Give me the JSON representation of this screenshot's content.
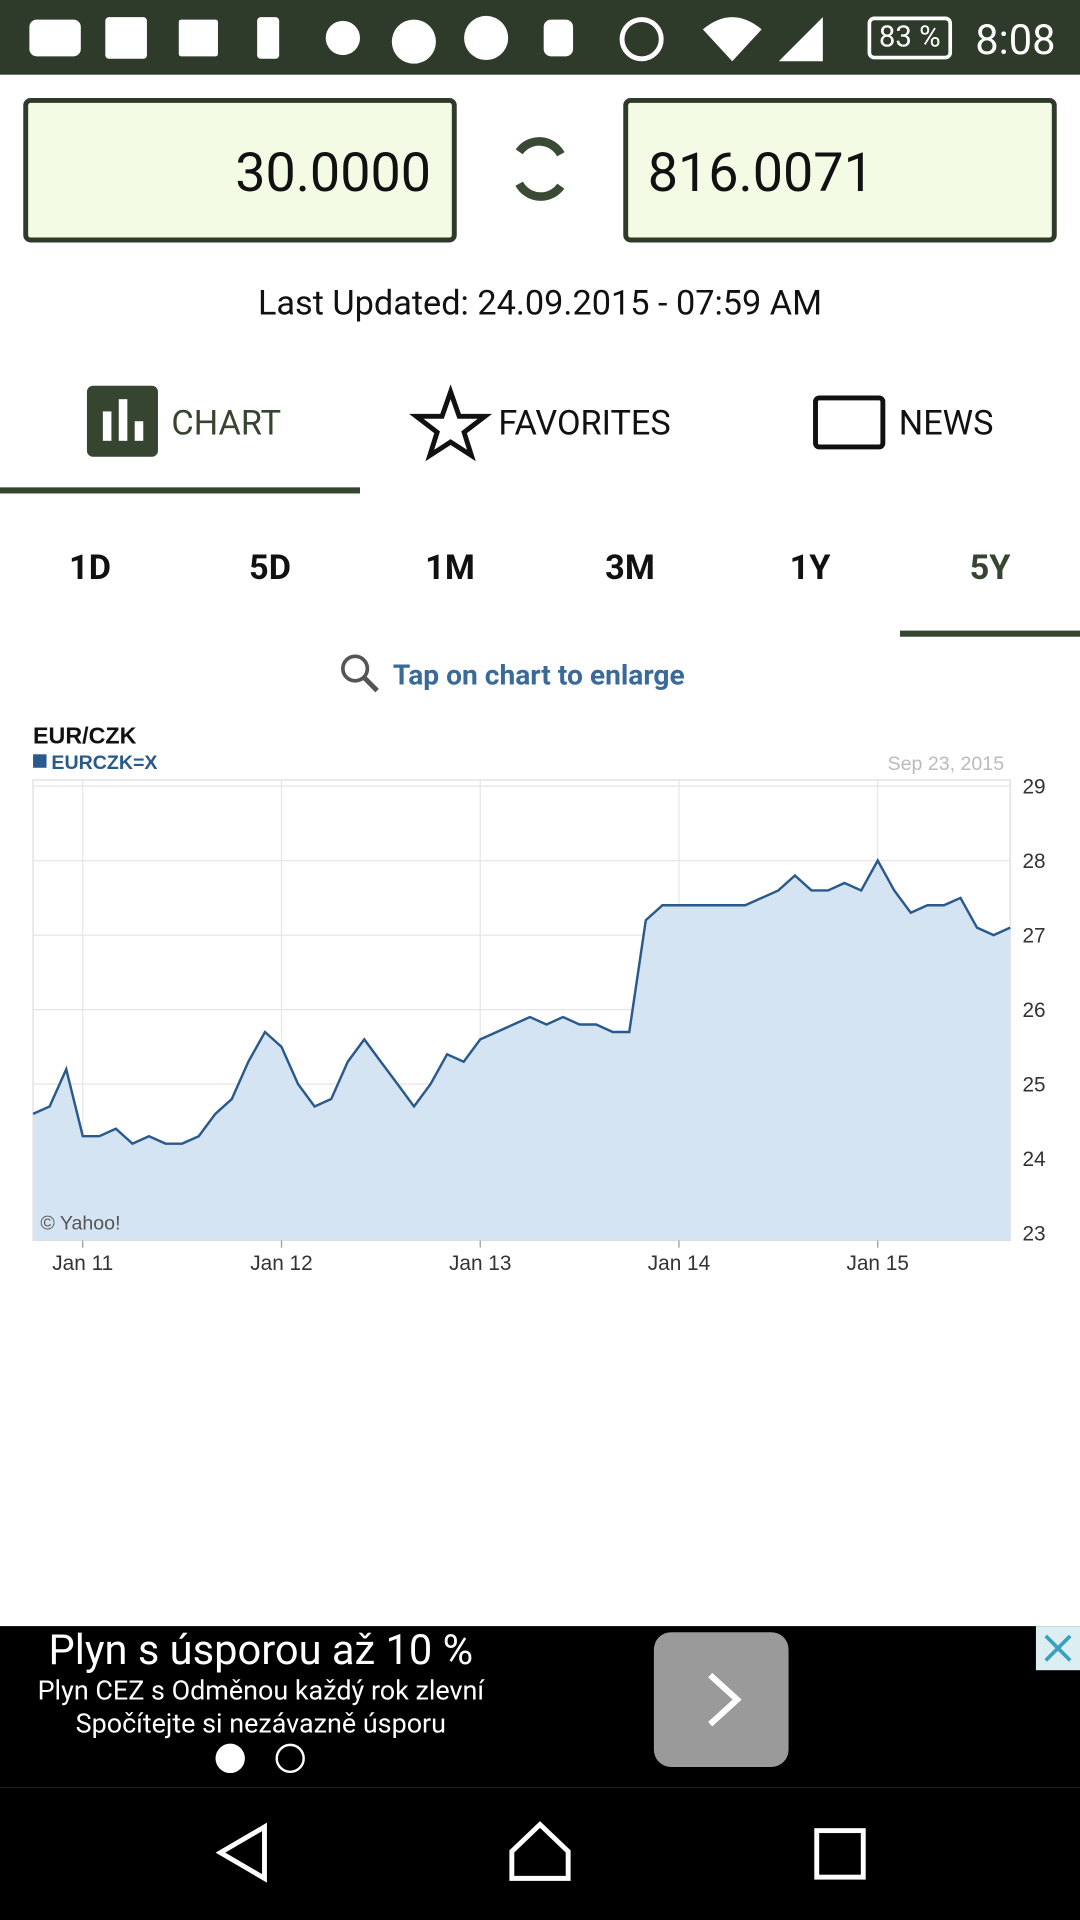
{
  "status_bar": {
    "battery": "83 %",
    "time": "8:08"
  },
  "converter": {
    "from": "30.0000",
    "to": "816.0071"
  },
  "last_updated": "Last Updated: 24.09.2015 - 07:59 AM",
  "tabs": [
    "CHART",
    "FAVORITES",
    "NEWS"
  ],
  "ranges": [
    "1D",
    "5D",
    "1M",
    "3M",
    "1Y",
    "5Y"
  ],
  "hint": "Tap on chart to enlarge",
  "chart_data": {
    "type": "line",
    "title": "EUR/CZK",
    "date_label": "Sep 23, 2015",
    "credit": "© Yahoo!",
    "categories": [
      null,
      null,
      null,
      "Jan 11",
      null,
      null,
      null,
      null,
      null,
      null,
      null,
      null,
      null,
      null,
      null,
      "Jan 12",
      null,
      null,
      null,
      null,
      null,
      null,
      null,
      null,
      null,
      null,
      null,
      "Jan 13",
      null,
      null,
      null,
      null,
      null,
      null,
      null,
      null,
      null,
      null,
      null,
      "Jan 14",
      null,
      null,
      null,
      null,
      null,
      null,
      null,
      null,
      null,
      null,
      null,
      "Jan 15",
      null,
      null,
      null,
      null,
      null,
      null,
      null,
      null
    ],
    "series": [
      {
        "name": "EURCZK=X",
        "color": "#2a5a8c",
        "values": [
          24.6,
          24.7,
          25.2,
          24.3,
          24.3,
          24.4,
          24.2,
          24.3,
          24.2,
          24.2,
          24.3,
          24.6,
          24.8,
          25.3,
          25.7,
          25.5,
          25.0,
          24.7,
          24.8,
          25.3,
          25.6,
          25.3,
          25.0,
          24.7,
          25.0,
          25.4,
          25.3,
          25.6,
          25.7,
          25.8,
          25.9,
          25.8,
          25.9,
          25.8,
          25.8,
          25.7,
          25.7,
          27.2,
          27.4,
          27.4,
          27.4,
          27.4,
          27.4,
          27.4,
          27.5,
          27.6,
          27.8,
          27.6,
          27.6,
          27.7,
          27.6,
          28.0,
          27.6,
          27.3,
          27.4,
          27.4,
          27.5,
          27.1,
          27.0,
          27.1
        ]
      }
    ],
    "ylim": [
      23,
      29
    ],
    "yticks": [
      23,
      24,
      25,
      26,
      27,
      28,
      29
    ],
    "grid": true
  },
  "ad": {
    "headline": "Plyn s úsporou až 10 %",
    "line1": "Plyn CEZ s Odměnou každý rok zlevní",
    "line2": "Spočítejte si nezávazně úsporu"
  }
}
